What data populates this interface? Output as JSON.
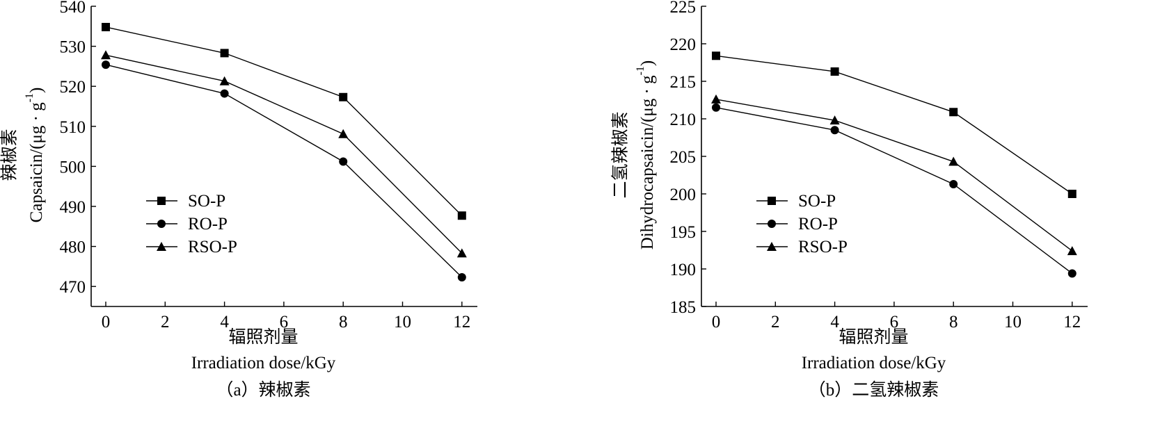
{
  "chart_data": [
    {
      "type": "line",
      "x": [
        0,
        4,
        8,
        12
      ],
      "xlim": [
        -1,
        12.5
      ],
      "ylim": [
        465,
        540
      ],
      "xticks": [
        0,
        2,
        4,
        6,
        8,
        10,
        12
      ],
      "yticks": [
        470,
        480,
        490,
        500,
        510,
        520,
        530,
        540
      ],
      "xlabel_cn": "辐照剂量",
      "xlabel_en": "Irradiation dose/kGy",
      "ylabel_cn": "辣椒素",
      "ylabel_en": "Capsaicin/(μg · g",
      "ylabel_sup": "-1",
      "ylabel_close": ")",
      "caption": "（a）辣椒素",
      "legend_position": "lower-left",
      "series": [
        {
          "name": "SO-P",
          "marker": "square",
          "values": [
            534.8,
            528.3,
            517.3,
            487.7
          ]
        },
        {
          "name": "RO-P",
          "marker": "circle",
          "values": [
            525.4,
            518.2,
            501.2,
            472.3
          ]
        },
        {
          "name": "RSO-P",
          "marker": "triangle",
          "values": [
            527.8,
            521.3,
            508.1,
            478.3
          ]
        }
      ]
    },
    {
      "type": "line",
      "x": [
        0,
        4,
        8,
        12
      ],
      "xlim": [
        -1,
        12.5
      ],
      "ylim": [
        185,
        225
      ],
      "xticks": [
        0,
        2,
        4,
        6,
        8,
        10,
        12
      ],
      "yticks": [
        185,
        190,
        195,
        200,
        205,
        210,
        215,
        220,
        225
      ],
      "xlabel_cn": "辐照剂量",
      "xlabel_en": "Irradiation dose/kGy",
      "ylabel_cn": "二氢辣椒素",
      "ylabel_en": "Dihydrocapsaicin/(μg · g",
      "ylabel_sup": "-1",
      "ylabel_close": ")",
      "caption": "（b）二氢辣椒素",
      "legend_position": "lower-left",
      "series": [
        {
          "name": "SO-P",
          "marker": "square",
          "values": [
            218.4,
            216.3,
            210.9,
            200.0
          ]
        },
        {
          "name": "RO-P",
          "marker": "circle",
          "values": [
            211.5,
            208.5,
            201.3,
            189.4
          ]
        },
        {
          "name": "RSO-P",
          "marker": "triangle",
          "values": [
            212.6,
            209.8,
            204.3,
            192.4
          ]
        }
      ]
    }
  ]
}
